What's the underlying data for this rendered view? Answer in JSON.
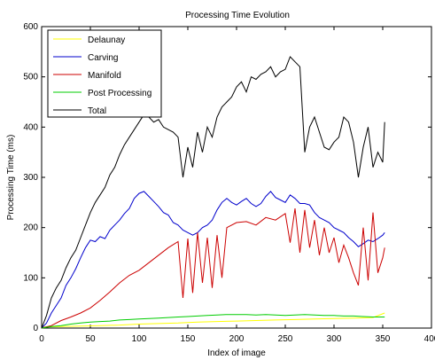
{
  "chart_data": {
    "type": "line",
    "title": "Processing Time Evolution",
    "xlabel": "Index of image",
    "ylabel": "Processing Time (ms)",
    "xlim": [
      0,
      400
    ],
    "ylim": [
      0,
      600
    ],
    "xticks": [
      0,
      50,
      100,
      150,
      200,
      250,
      300,
      350,
      400
    ],
    "yticks": [
      0,
      100,
      200,
      300,
      400,
      500,
      600
    ],
    "grid": false,
    "legend_position": "top-left",
    "series": [
      {
        "name": "Delaunay",
        "color": "#ffff00",
        "points": [
          [
            0,
            2
          ],
          [
            20,
            3
          ],
          [
            40,
            4
          ],
          [
            60,
            5
          ],
          [
            80,
            6
          ],
          [
            100,
            8
          ],
          [
            120,
            9
          ],
          [
            140,
            10
          ],
          [
            160,
            12
          ],
          [
            180,
            13
          ],
          [
            200,
            14
          ],
          [
            220,
            15
          ],
          [
            240,
            16
          ],
          [
            260,
            17
          ],
          [
            280,
            18
          ],
          [
            300,
            19
          ],
          [
            320,
            20
          ],
          [
            340,
            21
          ],
          [
            352,
            30
          ]
        ]
      },
      {
        "name": "Carving",
        "color": "#0000cc",
        "points": [
          [
            0,
            0
          ],
          [
            5,
            10
          ],
          [
            10,
            30
          ],
          [
            15,
            45
          ],
          [
            20,
            60
          ],
          [
            25,
            85
          ],
          [
            30,
            100
          ],
          [
            35,
            118
          ],
          [
            40,
            140
          ],
          [
            45,
            160
          ],
          [
            50,
            175
          ],
          [
            55,
            172
          ],
          [
            60,
            182
          ],
          [
            65,
            178
          ],
          [
            70,
            195
          ],
          [
            75,
            205
          ],
          [
            80,
            215
          ],
          [
            85,
            228
          ],
          [
            90,
            238
          ],
          [
            95,
            258
          ],
          [
            100,
            268
          ],
          [
            105,
            272
          ],
          [
            110,
            262
          ],
          [
            115,
            252
          ],
          [
            120,
            242
          ],
          [
            125,
            230
          ],
          [
            130,
            225
          ],
          [
            135,
            210
          ],
          [
            140,
            205
          ],
          [
            145,
            195
          ],
          [
            150,
            190
          ],
          [
            155,
            185
          ],
          [
            160,
            190
          ],
          [
            165,
            200
          ],
          [
            170,
            205
          ],
          [
            175,
            215
          ],
          [
            180,
            235
          ],
          [
            185,
            250
          ],
          [
            190,
            258
          ],
          [
            195,
            250
          ],
          [
            200,
            245
          ],
          [
            205,
            252
          ],
          [
            210,
            258
          ],
          [
            215,
            248
          ],
          [
            220,
            242
          ],
          [
            225,
            248
          ],
          [
            230,
            262
          ],
          [
            235,
            272
          ],
          [
            240,
            260
          ],
          [
            245,
            255
          ],
          [
            250,
            250
          ],
          [
            255,
            265
          ],
          [
            260,
            258
          ],
          [
            265,
            248
          ],
          [
            270,
            248
          ],
          [
            275,
            245
          ],
          [
            280,
            230
          ],
          [
            285,
            220
          ],
          [
            290,
            215
          ],
          [
            295,
            210
          ],
          [
            300,
            200
          ],
          [
            305,
            195
          ],
          [
            310,
            190
          ],
          [
            315,
            180
          ],
          [
            320,
            172
          ],
          [
            325,
            162
          ],
          [
            330,
            168
          ],
          [
            335,
            175
          ],
          [
            340,
            172
          ],
          [
            345,
            178
          ],
          [
            350,
            185
          ],
          [
            352,
            190
          ]
        ]
      },
      {
        "name": "Manifold",
        "color": "#cc0000",
        "points": [
          [
            0,
            0
          ],
          [
            10,
            5
          ],
          [
            20,
            15
          ],
          [
            30,
            22
          ],
          [
            40,
            30
          ],
          [
            50,
            40
          ],
          [
            60,
            55
          ],
          [
            70,
            72
          ],
          [
            80,
            90
          ],
          [
            90,
            105
          ],
          [
            100,
            115
          ],
          [
            110,
            130
          ],
          [
            120,
            145
          ],
          [
            130,
            160
          ],
          [
            140,
            172
          ],
          [
            145,
            60
          ],
          [
            150,
            178
          ],
          [
            155,
            70
          ],
          [
            160,
            190
          ],
          [
            165,
            90
          ],
          [
            170,
            180
          ],
          [
            175,
            80
          ],
          [
            180,
            185
          ],
          [
            185,
            100
          ],
          [
            190,
            200
          ],
          [
            200,
            210
          ],
          [
            210,
            212
          ],
          [
            220,
            205
          ],
          [
            230,
            220
          ],
          [
            240,
            215
          ],
          [
            250,
            228
          ],
          [
            255,
            170
          ],
          [
            260,
            238
          ],
          [
            265,
            150
          ],
          [
            270,
            235
          ],
          [
            275,
            160
          ],
          [
            280,
            215
          ],
          [
            285,
            145
          ],
          [
            290,
            200
          ],
          [
            295,
            150
          ],
          [
            300,
            180
          ],
          [
            305,
            130
          ],
          [
            310,
            165
          ],
          [
            315,
            140
          ],
          [
            320,
            110
          ],
          [
            325,
            85
          ],
          [
            330,
            200
          ],
          [
            335,
            95
          ],
          [
            340,
            230
          ],
          [
            345,
            110
          ],
          [
            350,
            140
          ],
          [
            352,
            160
          ]
        ]
      },
      {
        "name": "Post Processing",
        "color": "#00cc00",
        "points": [
          [
            0,
            0
          ],
          [
            10,
            3
          ],
          [
            20,
            5
          ],
          [
            30,
            8
          ],
          [
            40,
            10
          ],
          [
            50,
            12
          ],
          [
            60,
            13
          ],
          [
            70,
            14
          ],
          [
            80,
            16
          ],
          [
            90,
            17
          ],
          [
            100,
            18
          ],
          [
            110,
            19
          ],
          [
            120,
            20
          ],
          [
            130,
            21
          ],
          [
            140,
            22
          ],
          [
            150,
            23
          ],
          [
            160,
            24
          ],
          [
            170,
            25
          ],
          [
            180,
            26
          ],
          [
            190,
            27
          ],
          [
            200,
            27
          ],
          [
            210,
            27
          ],
          [
            220,
            26
          ],
          [
            230,
            27
          ],
          [
            240,
            26
          ],
          [
            250,
            25
          ],
          [
            260,
            26
          ],
          [
            270,
            27
          ],
          [
            280,
            26
          ],
          [
            290,
            25
          ],
          [
            300,
            25
          ],
          [
            310,
            24
          ],
          [
            320,
            24
          ],
          [
            330,
            23
          ],
          [
            340,
            22
          ],
          [
            352,
            22
          ]
        ]
      },
      {
        "name": "Total",
        "color": "#000000",
        "points": [
          [
            0,
            0
          ],
          [
            5,
            25
          ],
          [
            10,
            60
          ],
          [
            15,
            80
          ],
          [
            20,
            95
          ],
          [
            25,
            120
          ],
          [
            30,
            140
          ],
          [
            35,
            155
          ],
          [
            40,
            180
          ],
          [
            45,
            205
          ],
          [
            50,
            230
          ],
          [
            55,
            250
          ],
          [
            60,
            265
          ],
          [
            65,
            280
          ],
          [
            70,
            305
          ],
          [
            75,
            320
          ],
          [
            80,
            345
          ],
          [
            85,
            365
          ],
          [
            90,
            380
          ],
          [
            95,
            395
          ],
          [
            100,
            410
          ],
          [
            105,
            425
          ],
          [
            110,
            420
          ],
          [
            115,
            410
          ],
          [
            120,
            415
          ],
          [
            125,
            400
          ],
          [
            130,
            395
          ],
          [
            135,
            390
          ],
          [
            140,
            380
          ],
          [
            145,
            300
          ],
          [
            150,
            360
          ],
          [
            155,
            320
          ],
          [
            160,
            390
          ],
          [
            165,
            350
          ],
          [
            170,
            400
          ],
          [
            175,
            380
          ],
          [
            180,
            420
          ],
          [
            185,
            440
          ],
          [
            190,
            450
          ],
          [
            195,
            460
          ],
          [
            200,
            480
          ],
          [
            205,
            490
          ],
          [
            210,
            470
          ],
          [
            215,
            500
          ],
          [
            220,
            495
          ],
          [
            225,
            505
          ],
          [
            230,
            510
          ],
          [
            235,
            520
          ],
          [
            240,
            500
          ],
          [
            245,
            510
          ],
          [
            250,
            515
          ],
          [
            255,
            540
          ],
          [
            260,
            530
          ],
          [
            265,
            520
          ],
          [
            270,
            350
          ],
          [
            275,
            400
          ],
          [
            280,
            420
          ],
          [
            285,
            390
          ],
          [
            290,
            360
          ],
          [
            295,
            355
          ],
          [
            300,
            370
          ],
          [
            305,
            380
          ],
          [
            310,
            420
          ],
          [
            315,
            410
          ],
          [
            320,
            370
          ],
          [
            325,
            300
          ],
          [
            330,
            360
          ],
          [
            335,
            400
          ],
          [
            340,
            320
          ],
          [
            345,
            350
          ],
          [
            350,
            330
          ],
          [
            352,
            410
          ]
        ]
      }
    ]
  }
}
